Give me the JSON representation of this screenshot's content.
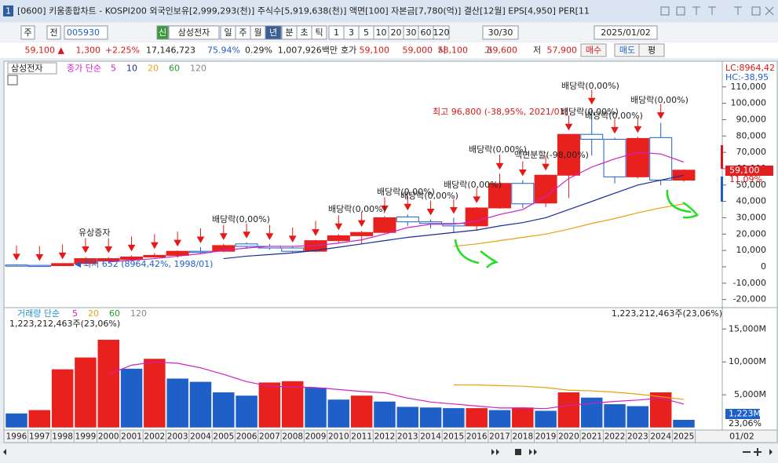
{
  "window": {
    "index": "1",
    "title": "[0600] 키움종합차트 - KOSPI200 외국인보유[2,999,293(천)] 주식수[5,919,638(천)] 액면[100] 자본금[7,780(억)] 결산[12월] EPS[4,950] PER[11"
  },
  "toolbar": {
    "items": [
      "주",
      "전",
      "005930",
      "신",
      "삼성전자",
      "일",
      "주",
      "월",
      "년",
      "분",
      "초",
      "틱",
      "1",
      "3",
      "5",
      "10",
      "20",
      "30",
      "60",
      "120",
      "30/30",
      "2025/01/02"
    ]
  },
  "quote": {
    "items": [
      "59,100 ▲",
      "1,300",
      "+2.25%",
      "17,146,723",
      "75.94%",
      "0.29%",
      "1,007,926백만",
      "호가",
      "59,100",
      "59,000",
      "시",
      "58,100",
      "고",
      "59,600",
      "저",
      "57,900",
      "매수",
      "매도",
      "평"
    ]
  },
  "chart_data": [
    {
      "type": "candlestick",
      "name": "삼성전자",
      "ma_label": "종가 단순",
      "up_color": "#e8201e",
      "down_color": "#1f5fc8",
      "open": [
        1100,
        900,
        700,
        2000,
        3500,
        4500,
        6000,
        7000,
        9500,
        9500,
        14000,
        12500,
        11500,
        9500,
        16000,
        19000,
        21000,
        30500,
        27500,
        26500,
        25000,
        36000,
        51000,
        39000,
        56000,
        81000,
        78000,
        55000,
        79000,
        53000
      ],
      "high": [
        1500,
        1200,
        2200,
        6000,
        6000,
        7000,
        8500,
        10000,
        12000,
        14000,
        15000,
        14000,
        12500,
        16500,
        20000,
        22000,
        31000,
        32000,
        29000,
        30000,
        36500,
        57000,
        53000,
        56500,
        81000,
        96800,
        79000,
        79500,
        88000,
        59600
      ],
      "low": [
        800,
        700,
        652,
        1800,
        3000,
        4000,
        5500,
        5500,
        8000,
        9000,
        11000,
        10500,
        8500,
        9000,
        14500,
        14000,
        20500,
        25000,
        23500,
        21000,
        22000,
        35500,
        36000,
        36500,
        42000,
        68000,
        51000,
        54000,
        49900,
        52000
      ],
      "close": [
        900,
        700,
        2000,
        5000,
        5000,
        6000,
        7000,
        9500,
        9000,
        13000,
        12500,
        11500,
        9500,
        16000,
        19000,
        21000,
        30000,
        27500,
        26500,
        25000,
        36000,
        51000,
        38500,
        56000,
        81000,
        78000,
        55000,
        78500,
        53000,
        59100
      ],
      "series": [
        {
          "name": "5",
          "color": "#d020c0",
          "values": [
            null,
            null,
            null,
            null,
            3000,
            4000,
            5000,
            6500,
            8000,
            10000,
            11500,
            12500,
            12500,
            13000,
            14500,
            16500,
            20000,
            24000,
            26000,
            26000,
            28000,
            32000,
            35000,
            43000,
            54000,
            61000,
            66000,
            70000,
            69000,
            64000
          ]
        },
        {
          "name": "10",
          "color": "#1a2a9a",
          "values": [
            null,
            null,
            null,
            null,
            null,
            null,
            null,
            null,
            null,
            5000,
            6500,
            7500,
            8500,
            10000,
            12000,
            14000,
            16000,
            18000,
            19500,
            21000,
            22500,
            25000,
            27000,
            30000,
            35000,
            40000,
            45000,
            50000,
            53000,
            56000
          ]
        },
        {
          "name": "20",
          "color": "#e8a010",
          "values": [
            null,
            null,
            null,
            null,
            null,
            null,
            null,
            null,
            null,
            null,
            null,
            null,
            null,
            null,
            null,
            null,
            null,
            null,
            null,
            12500,
            14000,
            16000,
            18000,
            20000,
            23000,
            26500,
            29500,
            33000,
            36000,
            38500
          ]
        },
        {
          "name": "60",
          "color": "#2a9a2a",
          "values": [
            null,
            null,
            null,
            null,
            null,
            null,
            null,
            null,
            null,
            null,
            null,
            null,
            null,
            null,
            null,
            null,
            null,
            null,
            null,
            null,
            null,
            null,
            null,
            null,
            null,
            null,
            null,
            null,
            null,
            null
          ]
        },
        {
          "name": "120",
          "color": "#888888",
          "values": [
            null,
            null,
            null,
            null,
            null,
            null,
            null,
            null,
            null,
            null,
            null,
            null,
            null,
            null,
            null,
            null,
            null,
            null,
            null,
            null,
            null,
            null,
            null,
            null,
            null,
            null,
            null,
            null,
            null,
            null
          ]
        }
      ],
      "ylim": [
        -24000,
        119000
      ],
      "yticks": [
        {
          "value": -20000,
          "label": "-20,000"
        },
        {
          "value": -10000,
          "label": "-10,000"
        },
        0,
        {
          "value": 10000,
          "label": "10,000"
        },
        {
          "value": 20000,
          "label": "20,000"
        },
        {
          "value": 30000,
          "label": "30,000"
        },
        {
          "value": 40000,
          "label": "40,000"
        },
        {
          "value": 50000,
          "label": "50,000"
        },
        {
          "value": 60000,
          "label": "60,000"
        },
        {
          "value": 70000,
          "label": "70,000"
        },
        {
          "value": 80000,
          "label": "80,000"
        },
        {
          "value": 90000,
          "label": "90,000"
        },
        {
          "value": 100000,
          "label": "100,000"
        },
        {
          "value": 110000,
          "label": "110,000"
        }
      ],
      "annotations": [
        "배당락(0,00%)",
        "배당락(0,00%)",
        "최고 96,800 (-38,95%, 2021/01)",
        "배당락(0,00%)",
        "배당락(0,00%)",
        "배당락(0,00%)",
        "액면분할(-98,00%)",
        "배당락(0,00%)",
        "배당락(0,00%)",
        "배당락(0,00%)",
        "배당락(0,00%)",
        "배당락(0,00%)",
        "유상증자",
        "최저 652 (8964,42%, 1998/01)"
      ],
      "last_price_label": "59,100",
      "last_change_label": "11,09%",
      "lc_label": "LC:8964,42",
      "hc_label": "HC:-38,95"
    },
    {
      "type": "bar",
      "title": "거래량 단순",
      "categories": [
        "1996",
        "1997",
        "1998",
        "1999",
        "2000",
        "2001",
        "2002",
        "2003",
        "2004",
        "2005",
        "2006",
        "2007",
        "2008",
        "2009",
        "2010",
        "2011",
        "2012",
        "2013",
        "2014",
        "2015",
        "2016",
        "2017",
        "2018",
        "2019",
        "2020",
        "2021",
        "2022",
        "2023",
        "2024",
        "2025"
      ],
      "values": [
        2200,
        2700,
        8900,
        10700,
        13400,
        9000,
        10500,
        7500,
        7000,
        5400,
        4900,
        6900,
        7100,
        6100,
        4300,
        4900,
        4000,
        3200,
        3100,
        3000,
        3000,
        2700,
        3100,
        2600,
        5400,
        4600,
        3600,
        3300,
        5400,
        1223
      ],
      "colors": [
        "#1f5fc8",
        "#e8201e",
        "#e8201e",
        "#e8201e",
        "#e8201e",
        "#1f5fc8",
        "#e8201e",
        "#1f5fc8",
        "#1f5fc8",
        "#1f5fc8",
        "#1f5fc8",
        "#e8201e",
        "#e8201e",
        "#1f5fc8",
        "#1f5fc8",
        "#e8201e",
        "#1f5fc8",
        "#1f5fc8",
        "#1f5fc8",
        "#1f5fc8",
        "#e8201e",
        "#1f5fc8",
        "#e8201e",
        "#1f5fc8",
        "#e8201e",
        "#1f5fc8",
        "#1f5fc8",
        "#1f5fc8",
        "#e8201e",
        "#1f5fc8"
      ],
      "series": [
        {
          "name": "5",
          "color": "#d020c0",
          "values": [
            null,
            null,
            null,
            null,
            8100,
            9500,
            10000,
            9800,
            9100,
            8100,
            7000,
            6300,
            6200,
            6100,
            5800,
            5500,
            5300,
            4500,
            3900,
            3600,
            3300,
            3000,
            3000,
            2900,
            3400,
            3700,
            4000,
            4200,
            4500,
            3600
          ]
        },
        {
          "name": "20",
          "color": "#e8a010",
          "values": [
            null,
            null,
            null,
            null,
            null,
            null,
            null,
            null,
            null,
            null,
            null,
            null,
            null,
            null,
            null,
            null,
            null,
            null,
            null,
            6500,
            6500,
            6400,
            6300,
            6100,
            5700,
            5600,
            5400,
            5100,
            4700,
            4300
          ]
        },
        {
          "name": "60",
          "color": "#2a9a2a",
          "values": [
            null,
            null,
            null,
            null,
            null,
            null,
            null,
            null,
            null,
            null,
            null,
            null,
            null,
            null,
            null,
            null,
            null,
            null,
            null,
            null,
            null,
            null,
            null,
            null,
            null,
            null,
            null,
            null,
            null,
            null
          ]
        },
        {
          "name": "120",
          "color": "#888888",
          "values": [
            null,
            null,
            null,
            null,
            null,
            null,
            null,
            null,
            null,
            null,
            null,
            null,
            null,
            null,
            null,
            null,
            null,
            null,
            null,
            null,
            null,
            null,
            null,
            null,
            null,
            null,
            null,
            null,
            null,
            null
          ]
        }
      ],
      "ylim": [
        0,
        17300
      ],
      "yticks": [
        {
          "value": 5000,
          "label": "5,000M"
        },
        {
          "value": 10000,
          "label": "10,000M"
        },
        {
          "value": 15000,
          "label": "15,000M"
        }
      ],
      "volume_label": "1,223,212,463주(23,06%)",
      "last_value_label": "1,223M",
      "last_pct_label": "23,06%",
      "date_label": "01/02"
    }
  ]
}
